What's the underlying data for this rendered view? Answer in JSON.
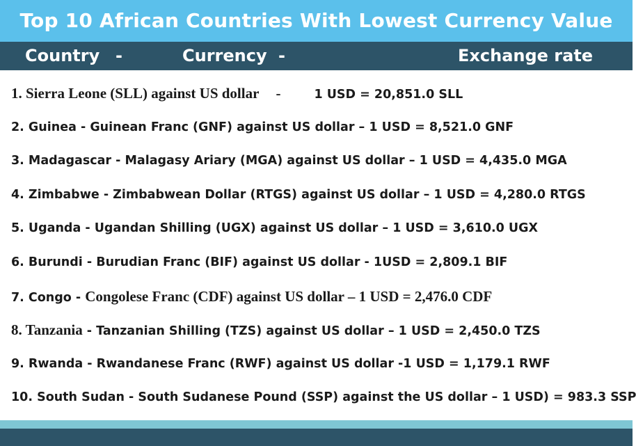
{
  "title": "Top 10 African Countries With Lowest Currency Value",
  "header": {
    "country": "Country",
    "dash1": "-",
    "currency": "Currency",
    "dash2": "-",
    "rate": "Exchange rate"
  },
  "items": [
    {
      "main": "1. Sierra Leone (SLL) against US dollar",
      "dash": "-",
      "rate": "1 USD = 20,851.0 SLL"
    },
    {
      "text": "2. Guinea - Guinean Franc (GNF) against US dollar – 1 USD = 8,521.0 GNF"
    },
    {
      "text": "3. Madagascar - Malagasy Ariary (MGA) against US dollar – 1 USD = 4,435.0 MGA"
    },
    {
      "text": "4. Zimbabwe - Zimbabwean Dollar (RTGS) against US dollar – 1 USD = 4,280.0 RTGS"
    },
    {
      "text": "5. Uganda - Ugandan Shilling (UGX) against US dollar – 1 USD = 3,610.0 UGX"
    },
    {
      "text": "6. Burundi - Burudian Franc (BIF) against US dollar - 1USD = 2,809.1 BIF"
    },
    {
      "prefix": "7.  Congo - ",
      "rest": "Congolese Franc (CDF) against US dollar – 1 USD = 2,476.0 CDF"
    },
    {
      "prefix": "8. Tanzania",
      "rest": " - Tanzanian Shilling (TZS) against US dollar – 1 USD = 2,450.0 TZS"
    },
    {
      "text": "9. Rwanda - Rwandanese Franc (RWF) against US dollar -1 USD = 1,179.1 RWF"
    },
    {
      "text": "10. South Sudan - South Sudanese Pound (SSP) against the US dollar – 1 USD) = 983.3 SSP"
    }
  ],
  "colors": {
    "title_bg": "#5bc0eb",
    "header_bg": "#2d5468",
    "bottom_light": "#7fc6d4",
    "bottom_dark": "#2d5468"
  }
}
